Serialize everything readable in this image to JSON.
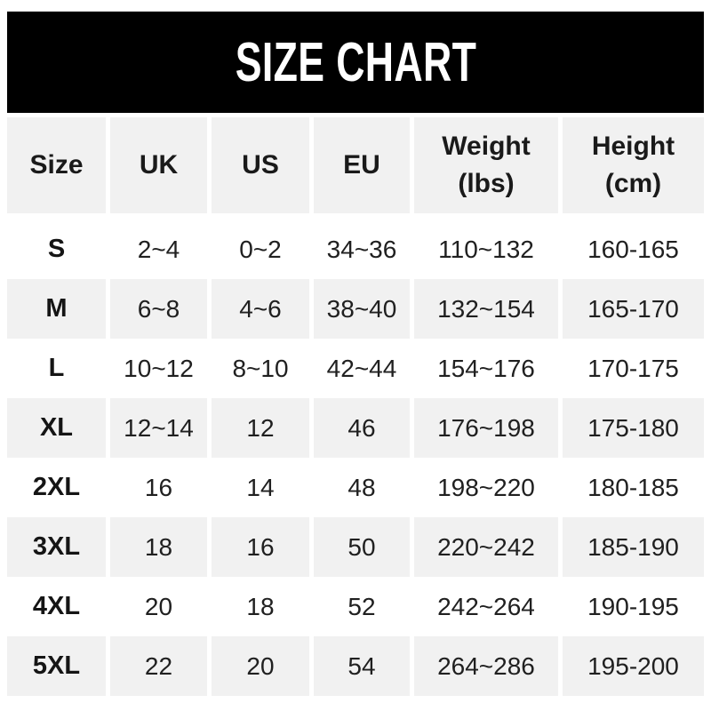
{
  "banner": {
    "bg_color": "#000000",
    "text_color": "#ffffff"
  },
  "colors": {
    "row_alt_bg": "#f1f1f1",
    "row_bg": "#ffffff",
    "text": "#202020"
  },
  "chart_data": {
    "type": "table",
    "title": "SIZE CHART",
    "columns": [
      {
        "label": "Size",
        "sub": ""
      },
      {
        "label": "UK",
        "sub": ""
      },
      {
        "label": "US",
        "sub": ""
      },
      {
        "label": "EU",
        "sub": ""
      },
      {
        "label": "Weight",
        "sub": "(lbs)"
      },
      {
        "label": "Height",
        "sub": "(cm)"
      }
    ],
    "rows": [
      {
        "size": "S",
        "uk": "2~4",
        "us": "0~2",
        "eu": "34~36",
        "weight": "110~132",
        "height": "160-165"
      },
      {
        "size": "M",
        "uk": "6~8",
        "us": "4~6",
        "eu": "38~40",
        "weight": "132~154",
        "height": "165-170"
      },
      {
        "size": "L",
        "uk": "10~12",
        "us": "8~10",
        "eu": "42~44",
        "weight": "154~176",
        "height": "170-175"
      },
      {
        "size": "XL",
        "uk": "12~14",
        "us": "12",
        "eu": "46",
        "weight": "176~198",
        "height": "175-180"
      },
      {
        "size": "2XL",
        "uk": "16",
        "us": "14",
        "eu": "48",
        "weight": "198~220",
        "height": "180-185"
      },
      {
        "size": "3XL",
        "uk": "18",
        "us": "16",
        "eu": "50",
        "weight": "220~242",
        "height": "185-190"
      },
      {
        "size": "4XL",
        "uk": "20",
        "us": "18",
        "eu": "52",
        "weight": "242~264",
        "height": "190-195"
      },
      {
        "size": "5XL",
        "uk": "22",
        "us": "20",
        "eu": "54",
        "weight": "264~286",
        "height": "195-200"
      }
    ]
  }
}
